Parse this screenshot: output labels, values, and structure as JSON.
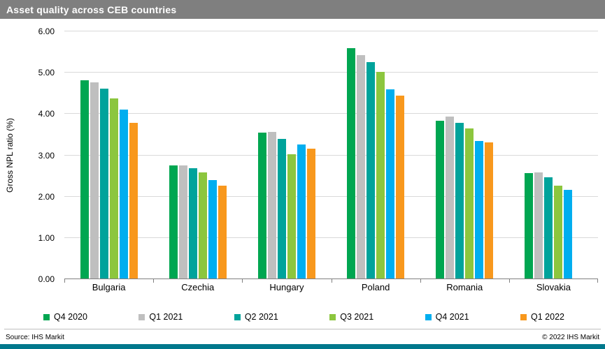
{
  "title": "Asset quality across CEB countries",
  "footer": {
    "source": "Source: IHS Markit",
    "copyright": "© 2022 IHS Markit"
  },
  "colors": {
    "header_bg": "#7f7f7f",
    "bottom_bar": "#00788c",
    "grid": "#d9d9d9",
    "axis": "#808080"
  },
  "chart_data": {
    "type": "bar",
    "title": "Asset quality across CEB countries",
    "xlabel": "",
    "ylabel": "Gross NPL ratio (%)",
    "ylim": [
      0,
      6
    ],
    "ytick_step": 1,
    "grid": true,
    "legend_position": "bottom",
    "categories": [
      "Bulgaria",
      "Czechia",
      "Hungary",
      "Poland",
      "Romania",
      "Slovakia"
    ],
    "series": [
      {
        "name": "Q4 2020",
        "color": "#00a651",
        "values": [
          4.82,
          2.76,
          3.55,
          5.6,
          3.84,
          2.57
        ]
      },
      {
        "name": "Q1 2021",
        "color": "#bfbfbf",
        "values": [
          4.76,
          2.76,
          3.57,
          5.42,
          3.94,
          2.58
        ]
      },
      {
        "name": "Q2 2021",
        "color": "#00a39b",
        "values": [
          4.62,
          2.68,
          3.4,
          5.25,
          3.78,
          2.46
        ]
      },
      {
        "name": "Q3 2021",
        "color": "#8cc63e",
        "values": [
          4.38,
          2.58,
          3.03,
          5.02,
          3.65,
          2.26
        ]
      },
      {
        "name": "Q4 2021",
        "color": "#00aeef",
        "values": [
          4.1,
          2.4,
          3.27,
          4.6,
          3.35,
          2.17
        ]
      },
      {
        "name": "Q1 2022",
        "color": "#f8981d",
        "values": [
          3.78,
          2.27,
          3.16,
          4.44,
          3.31,
          null
        ]
      }
    ]
  }
}
